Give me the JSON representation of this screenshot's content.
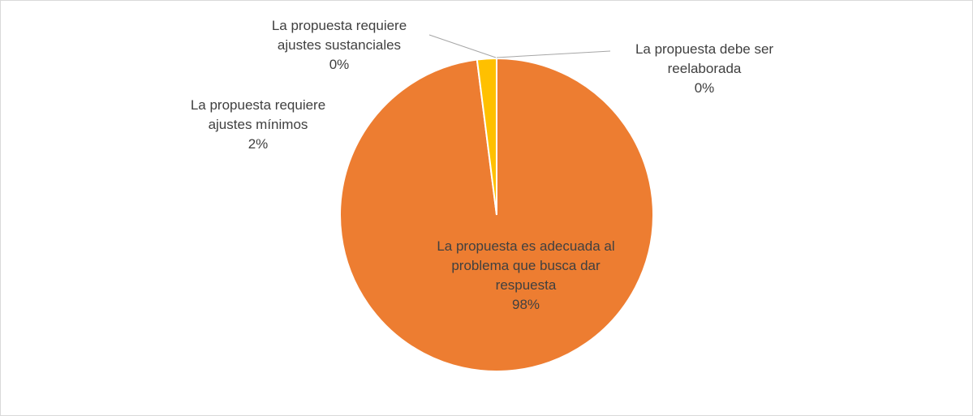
{
  "chart_data": {
    "type": "pie",
    "categories": [
      "La propuesta es adecuada al problema que busca dar respuesta",
      "La propuesta requiere ajustes mínimos",
      "La propuesta requiere ajustes sustanciales",
      "La propuesta debe ser reelaborada"
    ],
    "values": [
      98,
      2,
      0,
      0
    ],
    "value_labels": [
      "98%",
      "2%",
      "0%",
      "0%"
    ],
    "colors": [
      "#ed7d31",
      "#ffc000",
      "#a5a5a5",
      "#4472c4"
    ]
  }
}
